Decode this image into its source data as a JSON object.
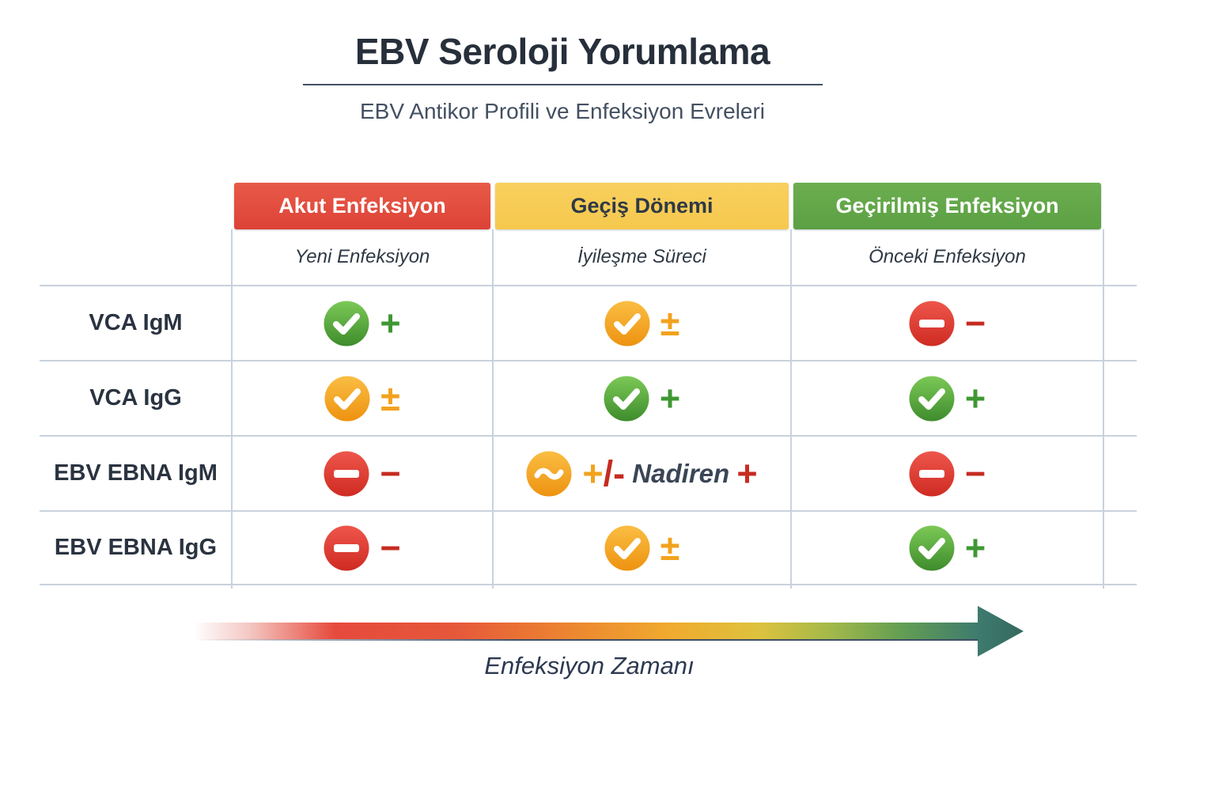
{
  "header": {
    "title": "EBV Seroloji Yorumlama",
    "subtitle": "EBV Antikor Profili ve Enfeksiyon Evreleri"
  },
  "palette": {
    "green": "#3f9733",
    "orange": "#f2a21d",
    "red": "#c62b21",
    "navy": "#3a4556"
  },
  "icon_colors": {
    "green": [
      "#7cc957",
      "#3e8c2c"
    ],
    "orange": [
      "#fabe43",
      "#ee9210"
    ],
    "red": [
      "#ee564b",
      "#cf2b22"
    ]
  },
  "table": {
    "columns": [
      {
        "label": "Akut Enfeksiyon",
        "sublabel": "Yeni Enfeksiyon",
        "color": "#dd4237",
        "color_top": "#e85a48",
        "text_color": "#ffffff"
      },
      {
        "label": "Geçiş Dönemi",
        "sublabel": "İyileşme Süreci",
        "color": "#f6c84d",
        "color_top": "#f8d05e",
        "text_color": "#2e3945"
      },
      {
        "label": "Geçirilmiş Enfeksiyon",
        "sublabel": "Önceki Enfeksiyon",
        "color": "#5ba043",
        "color_top": "#6cae50",
        "text_color": "#ffffff"
      }
    ],
    "rows": [
      {
        "label": "VCA IgM",
        "cells": [
          {
            "icon": "check-circle-green",
            "parts": [
              {
                "text": "+",
                "color": "green"
              }
            ]
          },
          {
            "icon": "check-circle-orange",
            "parts": [
              {
                "text": "±",
                "color": "orange"
              }
            ]
          },
          {
            "icon": "minus-circle-red",
            "parts": [
              {
                "text": "−",
                "color": "red"
              }
            ]
          }
        ]
      },
      {
        "label": "VCA IgG",
        "cells": [
          {
            "icon": "check-circle-orange",
            "parts": [
              {
                "text": "±",
                "color": "orange"
              }
            ]
          },
          {
            "icon": "check-circle-green",
            "parts": [
              {
                "text": "+",
                "color": "green"
              }
            ]
          },
          {
            "icon": "check-circle-green",
            "parts": [
              {
                "text": "+",
                "color": "green"
              }
            ]
          }
        ]
      },
      {
        "label": "EBV EBNA IgM",
        "cells": [
          {
            "icon": "minus-circle-red",
            "parts": [
              {
                "text": "−",
                "color": "red"
              }
            ]
          },
          {
            "icon": "tilde-circle-orange",
            "parts": [
              {
                "text": "+",
                "color": "orange"
              },
              {
                "text": "/-",
                "color": "red"
              },
              {
                "text": " Nadiren ",
                "color": "navy",
                "italic": true
              },
              {
                "text": "+",
                "color": "red"
              }
            ]
          },
          {
            "icon": "minus-circle-red",
            "parts": [
              {
                "text": "−",
                "color": "red"
              }
            ]
          }
        ]
      },
      {
        "label": "EBV EBNA IgG",
        "cells": [
          {
            "icon": "minus-circle-red",
            "parts": [
              {
                "text": "−",
                "color": "red"
              }
            ]
          },
          {
            "icon": "check-circle-orange",
            "parts": [
              {
                "text": "±",
                "color": "orange"
              }
            ]
          },
          {
            "icon": "check-circle-green",
            "parts": [
              {
                "text": "+",
                "color": "green"
              }
            ]
          }
        ]
      }
    ]
  },
  "timeline": {
    "label": "Enfeksiyon Zamanı"
  }
}
